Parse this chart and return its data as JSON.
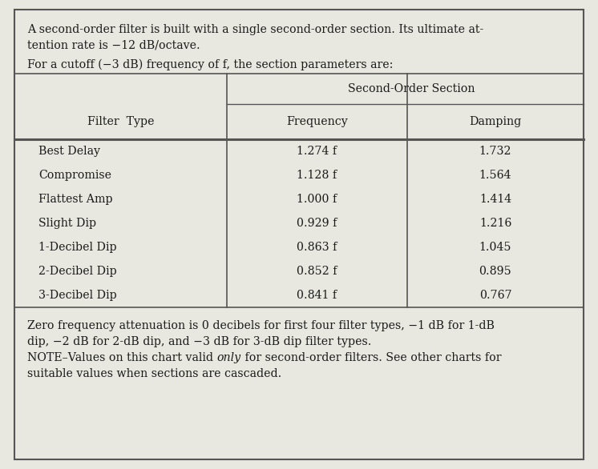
{
  "bg_color": "#e8e8e0",
  "white": "#ffffff",
  "border_color": "#666666",
  "text_color": "#1a1a1a",
  "line_color": "#555555",
  "intro_line1": "A second-order filter is built with a single second-order section. Its ultimate at-",
  "intro_line2": "tention rate is −12 dB/octave.",
  "intro_line3": "For a cutoff (−3 dB) frequency of f, the section parameters are:",
  "group_header": "Second-Order Section",
  "col0_header": "Filter  Type",
  "col1_header": "Frequency",
  "col2_header": "Damping",
  "filter_types": [
    "Best Delay",
    "Compromise",
    "Flattest Amp",
    "Slight Dip",
    "1-Decibel Dip",
    "2-Decibel Dip",
    "3-Decibel Dip"
  ],
  "frequencies": [
    "1.274 f",
    "1.128 f",
    "1.000 f",
    "0.929 f",
    "0.863 f",
    "0.852 f",
    "0.841 f"
  ],
  "dampings": [
    "1.732",
    "1.564",
    "1.414",
    "1.216",
    "1.045",
    "0.895",
    "0.767"
  ],
  "footer_line1": "Zero frequency attenuation is 0 decibels for first four filter types, −1 dB for 1-dB",
  "footer_line2": "dip, −2 dB for 2-dB dip, and −3 dB for 3-dB dip filter types.",
  "footer_line3a": "NOTE–Values on this chart valid ",
  "footer_line3b": "only",
  "footer_line3c": " for second-order filters. See other charts for",
  "footer_line4": "suitable values when sections are cascaded.",
  "font_size": 10.2,
  "font_family": "DejaVu Serif"
}
